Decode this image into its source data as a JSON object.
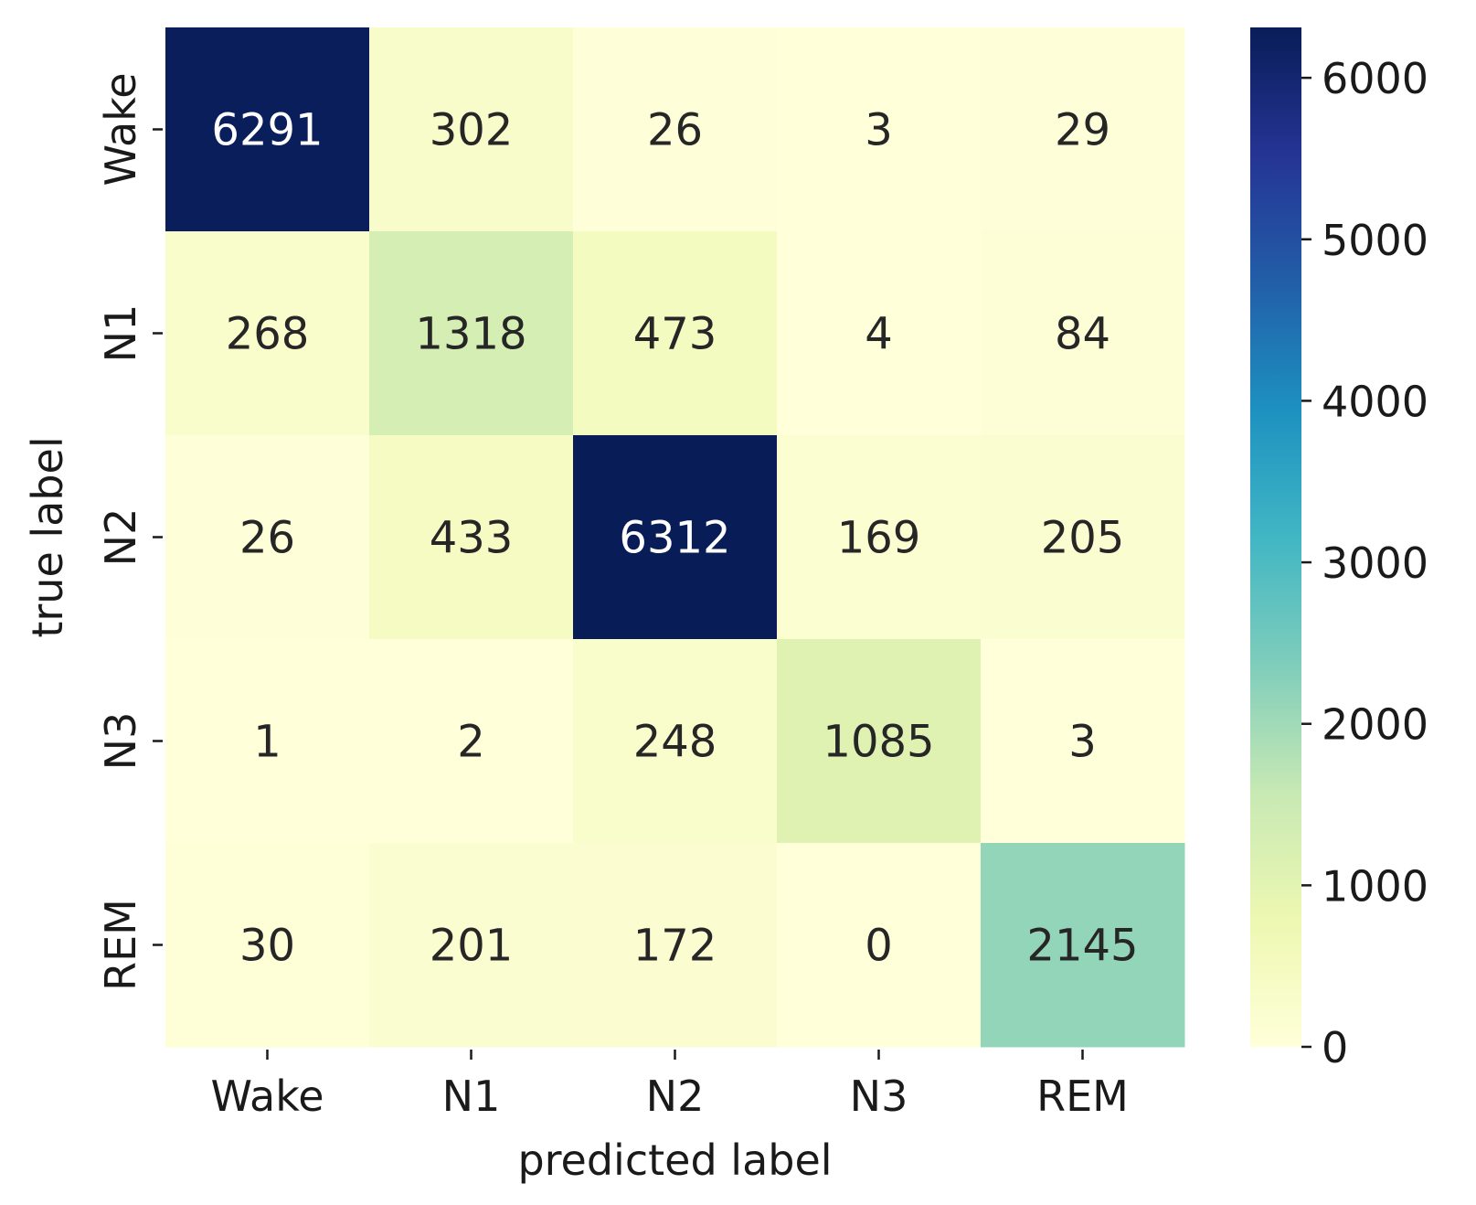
{
  "chart_data": {
    "type": "heatmap",
    "xlabel": "predicted label",
    "ylabel": "true label",
    "x_categories": [
      "Wake",
      "N1",
      "N2",
      "N3",
      "REM"
    ],
    "y_categories": [
      "Wake",
      "N1",
      "N2",
      "N3",
      "REM"
    ],
    "values": [
      [
        6291,
        302,
        26,
        3,
        29
      ],
      [
        268,
        1318,
        473,
        4,
        84
      ],
      [
        26,
        433,
        6312,
        169,
        205
      ],
      [
        1,
        2,
        248,
        1085,
        3
      ],
      [
        30,
        201,
        172,
        0,
        2145
      ]
    ],
    "colormap": "YlGnBu",
    "colorbar": {
      "min": 0,
      "max": 6312,
      "ticks": [
        0,
        1000,
        2000,
        3000,
        4000,
        5000,
        6000
      ],
      "tick_labels": [
        "0",
        "1000",
        "2000",
        "3000",
        "4000",
        "5000",
        "6000"
      ]
    },
    "text_colors": {
      "dark": "#262626",
      "light": "#ffffff"
    }
  }
}
